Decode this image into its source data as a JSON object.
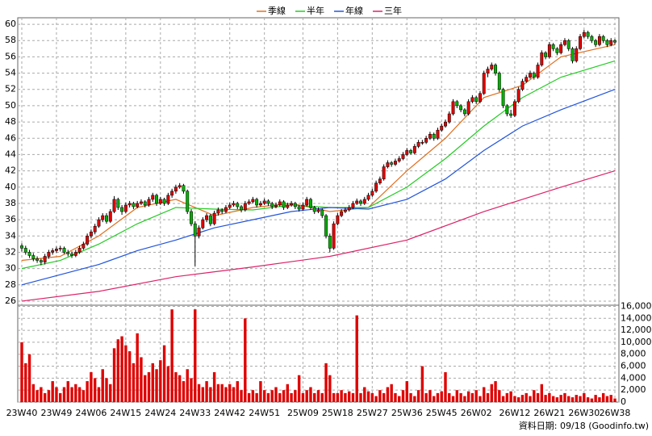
{
  "chart_data": {
    "type": "candlestick",
    "footer": "資料日期: 09/18 (Goodinfo.tw)",
    "up_color": "#e00000",
    "down_color": "#00b000",
    "volume_color": "#e00000",
    "grid": true,
    "ylim": [
      25.5,
      60.8
    ],
    "yticks": [
      26,
      28,
      30,
      32,
      34,
      36,
      38,
      40,
      42,
      44,
      46,
      48,
      50,
      52,
      54,
      56,
      58,
      60
    ],
    "volume_ylim": [
      0,
      16200
    ],
    "volume_yticks": [
      0,
      {
        "value": 2000,
        "label": "2,000"
      },
      {
        "value": 4000,
        "label": "4,000"
      },
      {
        "value": 6000,
        "label": "6,000"
      },
      {
        "value": 8000,
        "label": "8,000"
      },
      {
        "value": 10000,
        "label": "10,000"
      },
      {
        "value": 12000,
        "label": "12,000"
      },
      {
        "value": 14000,
        "label": "14,000"
      },
      {
        "value": 16000,
        "label": "16,000"
      }
    ],
    "categories": [
      "23W40",
      null,
      null,
      null,
      null,
      null,
      null,
      null,
      null,
      "23W49",
      null,
      null,
      null,
      null,
      null,
      null,
      null,
      null,
      "24W06",
      null,
      null,
      null,
      null,
      null,
      null,
      null,
      null,
      "24W15",
      null,
      null,
      null,
      null,
      null,
      null,
      null,
      null,
      "24W24",
      null,
      null,
      null,
      null,
      null,
      null,
      null,
      null,
      "24W33",
      null,
      null,
      null,
      null,
      null,
      null,
      null,
      null,
      "24W42",
      null,
      null,
      null,
      null,
      null,
      null,
      null,
      null,
      "24W51",
      null,
      null,
      null,
      null,
      null,
      null,
      null,
      null,
      null,
      "25W09",
      null,
      null,
      null,
      null,
      null,
      null,
      null,
      null,
      "25W18",
      null,
      null,
      null,
      null,
      null,
      null,
      null,
      null,
      "25W27",
      null,
      null,
      null,
      null,
      null,
      null,
      null,
      null,
      "25W36",
      null,
      null,
      null,
      null,
      null,
      null,
      null,
      null,
      "25W45",
      null,
      null,
      null,
      null,
      null,
      null,
      null,
      null,
      "26W02",
      null,
      null,
      null,
      null,
      null,
      null,
      null,
      null,
      null,
      "26W12",
      null,
      null,
      null,
      null,
      null,
      null,
      null,
      null,
      "26W21",
      null,
      null,
      null,
      null,
      null,
      null,
      null,
      null,
      "26W30",
      null,
      null,
      null,
      null,
      null,
      null,
      null,
      "26W38"
    ],
    "ohlc": [
      [
        32.8,
        33.1,
        32.1,
        32.5
      ],
      [
        32.5,
        32.8,
        31.7,
        32
      ],
      [
        32,
        32.3,
        31.3,
        31.6
      ],
      [
        31.6,
        31.9,
        30.9,
        31.2
      ],
      [
        31.2,
        31.5,
        30.7,
        31
      ],
      [
        31,
        31.2,
        30.4,
        30.8
      ],
      [
        30.8,
        31.8,
        30.5,
        31.5
      ],
      [
        31.5,
        32.3,
        31.2,
        32
      ],
      [
        32,
        32.5,
        31.7,
        32.2
      ],
      [
        32.2,
        32.7,
        31.9,
        32.4
      ],
      [
        32.4,
        32.8,
        32.1,
        32.5
      ],
      [
        32.5,
        32.7,
        31.8,
        32
      ],
      [
        32,
        32.3,
        31.5,
        31.8
      ],
      [
        31.8,
        32.1,
        31.3,
        31.6
      ],
      [
        31.6,
        32.3,
        31.4,
        32
      ],
      [
        32,
        32.8,
        31.8,
        32.5
      ],
      [
        32.5,
        33.3,
        32.3,
        33
      ],
      [
        33,
        34.3,
        32.8,
        34
      ],
      [
        34,
        34.8,
        33.7,
        34.5
      ],
      [
        34.5,
        35.5,
        34.2,
        35.2
      ],
      [
        35.2,
        36.3,
        35,
        36
      ],
      [
        36,
        36.8,
        35.7,
        36.5
      ],
      [
        36.5,
        36.8,
        35.5,
        35.8
      ],
      [
        35.8,
        37.3,
        35.6,
        37
      ],
      [
        37,
        38.9,
        36.8,
        38.5
      ],
      [
        38.5,
        38.7,
        37.2,
        37.5
      ],
      [
        37.5,
        37.8,
        36.6,
        37
      ],
      [
        37,
        38.1,
        36.8,
        37.8
      ],
      [
        37.8,
        38.3,
        37.5,
        38
      ],
      [
        38,
        38.2,
        37.3,
        37.6
      ],
      [
        37.6,
        38.3,
        37.4,
        38
      ],
      [
        38,
        38.5,
        37.8,
        38.2
      ],
      [
        38.2,
        38.4,
        37.5,
        37.8
      ],
      [
        37.8,
        38.8,
        37.6,
        38.5
      ],
      [
        38.5,
        39.3,
        38.2,
        39
      ],
      [
        39,
        39.2,
        37.7,
        38
      ],
      [
        38,
        38.8,
        37.8,
        38.5
      ],
      [
        38.5,
        38.7,
        37.7,
        38
      ],
      [
        38,
        39.3,
        37.8,
        39
      ],
      [
        39,
        39.8,
        38.7,
        39.5
      ],
      [
        39.5,
        40.3,
        39.2,
        40
      ],
      [
        40,
        40.5,
        39.8,
        40.2
      ],
      [
        40.2,
        40.4,
        39.2,
        39.5
      ],
      [
        39.5,
        39.7,
        36.7,
        37
      ],
      [
        37,
        37.3,
        35.2,
        35.5
      ],
      [
        35.5,
        35.8,
        30.3,
        34
      ],
      [
        34,
        35.3,
        33.7,
        35
      ],
      [
        35,
        36.3,
        34.8,
        36
      ],
      [
        36,
        36.8,
        35.7,
        36.5
      ],
      [
        36.5,
        36.7,
        35.2,
        35.5
      ],
      [
        35.5,
        37.1,
        35.3,
        36.8
      ],
      [
        36.8,
        37.5,
        36.5,
        37.2
      ],
      [
        37.2,
        37.4,
        36.7,
        37
      ],
      [
        37,
        37.8,
        36.8,
        37.5
      ],
      [
        37.5,
        38.1,
        37.3,
        37.8
      ],
      [
        37.8,
        38.3,
        37.6,
        38
      ],
      [
        38,
        38.2,
        37.3,
        37.6
      ],
      [
        37.6,
        37.8,
        36.9,
        37.2
      ],
      [
        37.2,
        38.3,
        37,
        38
      ],
      [
        38,
        38.5,
        37.8,
        38.2
      ],
      [
        38.2,
        38.8,
        38,
        38.5
      ],
      [
        38.5,
        38.7,
        37.5,
        37.8
      ],
      [
        37.8,
        38.3,
        37.6,
        38
      ],
      [
        38,
        38.6,
        37.8,
        38.3
      ],
      [
        38.3,
        38.5,
        37.7,
        38
      ],
      [
        38,
        38.2,
        37.3,
        37.6
      ],
      [
        37.6,
        38.1,
        37.4,
        37.8
      ],
      [
        37.8,
        38.5,
        37.6,
        38.2
      ],
      [
        38.2,
        38.4,
        37.2,
        37.5
      ],
      [
        37.5,
        38.1,
        37.3,
        37.8
      ],
      [
        37.8,
        38.3,
        37.6,
        38
      ],
      [
        38,
        38.2,
        37.3,
        37.6
      ],
      [
        37.6,
        37.8,
        37,
        37.3
      ],
      [
        37.3,
        38.1,
        37.1,
        37.8
      ],
      [
        37.8,
        38.8,
        37.6,
        38.5
      ],
      [
        38.5,
        38.7,
        37.2,
        37.5
      ],
      [
        37.5,
        37.7,
        36.7,
        37
      ],
      [
        37,
        37.5,
        36.8,
        37.2
      ],
      [
        37.2,
        37.4,
        36.2,
        36.5
      ],
      [
        36.5,
        36.7,
        33.7,
        34
      ],
      [
        34,
        34.3,
        32,
        32.5
      ],
      [
        32.5,
        35.8,
        32.3,
        35.5
      ],
      [
        35.5,
        36.8,
        35.3,
        36.5
      ],
      [
        36.5,
        37.3,
        36.3,
        37
      ],
      [
        37,
        37.5,
        36.8,
        37.2
      ],
      [
        37.2,
        37.8,
        37,
        37.5
      ],
      [
        37.5,
        38.3,
        37.3,
        38
      ],
      [
        38,
        38.6,
        37.8,
        38.3
      ],
      [
        38.3,
        38.5,
        37.7,
        38
      ],
      [
        38,
        38.8,
        37.8,
        38.5
      ],
      [
        38.5,
        39.3,
        38.3,
        39
      ],
      [
        39,
        39.8,
        38.8,
        39.5
      ],
      [
        39.5,
        40.8,
        39.3,
        40.5
      ],
      [
        40.5,
        41.3,
        40.3,
        41
      ],
      [
        41,
        42.8,
        40.8,
        42.5
      ],
      [
        42.5,
        43.3,
        42.3,
        43
      ],
      [
        43,
        43.2,
        42.5,
        42.8
      ],
      [
        42.8,
        43.5,
        42.6,
        43.2
      ],
      [
        43.2,
        43.8,
        43,
        43.5
      ],
      [
        43.5,
        44.3,
        43.3,
        44
      ],
      [
        44,
        44.8,
        43.8,
        44.5
      ],
      [
        44.5,
        44.7,
        44,
        44.2
      ],
      [
        44.2,
        45.3,
        44,
        45
      ],
      [
        45,
        45.8,
        44.8,
        45.5
      ],
      [
        45.5,
        45.8,
        45.2,
        45.5
      ],
      [
        45.5,
        46.3,
        45.3,
        46
      ],
      [
        46,
        46.8,
        45.8,
        46.5
      ],
      [
        46.5,
        46.7,
        45.7,
        46
      ],
      [
        46,
        47.3,
        45.8,
        47
      ],
      [
        47,
        47.8,
        46.8,
        47.5
      ],
      [
        47.5,
        48.3,
        47.3,
        48
      ],
      [
        48,
        49.3,
        47.8,
        49
      ],
      [
        49,
        50.8,
        48.8,
        50.5
      ],
      [
        50.5,
        50.7,
        49.7,
        50
      ],
      [
        50,
        50.2,
        49.2,
        49.5
      ],
      [
        49.5,
        49.7,
        48.7,
        49
      ],
      [
        49,
        50.8,
        48.8,
        50.5
      ],
      [
        50.5,
        51.3,
        50.3,
        51
      ],
      [
        51,
        51.2,
        50.2,
        50.5
      ],
      [
        50.5,
        51.8,
        50.3,
        51.5
      ],
      [
        51.5,
        54.3,
        51.3,
        54
      ],
      [
        54,
        54.8,
        53.5,
        54.5
      ],
      [
        54.5,
        55.3,
        54.3,
        55
      ],
      [
        55,
        55.2,
        53.7,
        54
      ],
      [
        54,
        54.2,
        51.7,
        52
      ],
      [
        52,
        52.2,
        49.7,
        50
      ],
      [
        50,
        50.2,
        48.7,
        49
      ],
      [
        49,
        49.5,
        48.5,
        48.8
      ],
      [
        48.8,
        50.8,
        48.6,
        50.5
      ],
      [
        50.5,
        52.3,
        50.3,
        52
      ],
      [
        52,
        53.3,
        51.8,
        53
      ],
      [
        53,
        53.8,
        52.8,
        53.5
      ],
      [
        53.5,
        54.3,
        53.3,
        54
      ],
      [
        54,
        54.2,
        53.2,
        53.5
      ],
      [
        53.5,
        55.3,
        53.3,
        55
      ],
      [
        55,
        56.8,
        54.8,
        56.5
      ],
      [
        56.5,
        56.7,
        55.7,
        56
      ],
      [
        56,
        57.8,
        55.8,
        57.5
      ],
      [
        57.5,
        57.7,
        56.7,
        57
      ],
      [
        57,
        57.2,
        56.2,
        56.5
      ],
      [
        56.5,
        57.8,
        56.3,
        57.5
      ],
      [
        57.5,
        58.3,
        57.3,
        58
      ],
      [
        58,
        58.2,
        56.7,
        57
      ],
      [
        57,
        57.2,
        55.2,
        55.5
      ],
      [
        55.5,
        57.3,
        55.3,
        57
      ],
      [
        57,
        58.8,
        56.8,
        58.5
      ],
      [
        58.5,
        59.3,
        58.3,
        59
      ],
      [
        59,
        59.2,
        58.2,
        58.5
      ],
      [
        58.5,
        58.7,
        57.7,
        58
      ],
      [
        58,
        58.2,
        57.2,
        57.5
      ],
      [
        57.5,
        58.8,
        57.3,
        58.5
      ],
      [
        58.5,
        58.7,
        57.7,
        58
      ],
      [
        58,
        58.2,
        57.2,
        57.5
      ],
      [
        57.5,
        58.3,
        57.3,
        58
      ],
      [
        58,
        58.2,
        57.5,
        57.8
      ]
    ],
    "volume": [
      10000,
      6500,
      8000,
      3000,
      2000,
      2500,
      1500,
      2000,
      3500,
      2500,
      1500,
      2500,
      3500,
      2500,
      3000,
      2500,
      2000,
      3500,
      5000,
      4000,
      2500,
      5500,
      4000,
      3000,
      9000,
      10500,
      11000,
      9500,
      8500,
      6500,
      11500,
      7500,
      4500,
      5000,
      6500,
      5500,
      7000,
      9500,
      6000,
      15500,
      5000,
      4500,
      3500,
      5500,
      4000,
      15500,
      3000,
      2500,
      3500,
      2500,
      5000,
      3000,
      3000,
      2500,
      3000,
      2500,
      3500,
      2000,
      14000,
      1500,
      2000,
      1500,
      3500,
      2000,
      1500,
      2000,
      2500,
      1500,
      2000,
      3000,
      1500,
      2000,
      4500,
      1500,
      2000,
      2500,
      1500,
      2000,
      1500,
      6500,
      4500,
      1500,
      1500,
      2000,
      1500,
      1800,
      1500,
      14500,
      1500,
      2500,
      1800,
      1500,
      1000,
      2000,
      1500,
      2500,
      3000,
      1500,
      1000,
      2000,
      3500,
      1500,
      1000,
      2000,
      6000,
      1500,
      2000,
      1000,
      1500,
      1800,
      5000,
      1500,
      1000,
      2000,
      1500,
      1000,
      1800,
      1500,
      2000,
      1000,
      2500,
      1500,
      3000,
      3500,
      2000,
      1000,
      1500,
      1800,
      1000,
      800,
      1200,
      1500,
      1000,
      2000,
      1500,
      3000,
      1200,
      1500,
      1000,
      800,
      1200,
      1500,
      1000,
      800,
      1200,
      1000,
      1500,
      800,
      600,
      1200,
      800,
      1500,
      1000,
      1200,
      600
    ],
    "series": [
      {
        "name": "季線",
        "color": "#e07020",
        "x": [
          0,
          10,
          20,
          30,
          40,
          50,
          60,
          70,
          80,
          90,
          100,
          110,
          120,
          130,
          140,
          154
        ],
        "values": [
          31,
          31.5,
          34,
          37.5,
          38.5,
          36.5,
          37.5,
          38,
          37,
          37.5,
          42,
          46,
          51,
          52.5,
          56,
          57.5
        ]
      },
      {
        "name": "半年",
        "color": "#22cc22",
        "x": [
          0,
          10,
          20,
          30,
          40,
          50,
          60,
          70,
          80,
          90,
          100,
          110,
          120,
          130,
          140,
          154
        ],
        "values": [
          30,
          31,
          33,
          35.5,
          37.5,
          37.3,
          37.2,
          37.8,
          37.5,
          37.5,
          40,
          43.5,
          47.5,
          51,
          53.5,
          55.5
        ]
      },
      {
        "name": "年線",
        "color": "#2255dd",
        "x": [
          0,
          20,
          30,
          40,
          50,
          60,
          70,
          80,
          90,
          100,
          110,
          120,
          130,
          140,
          154
        ],
        "values": [
          28,
          30.5,
          32.2,
          33.5,
          35,
          36,
          37,
          37.5,
          37.3,
          38.5,
          41,
          44.5,
          47.5,
          49.5,
          52
        ]
      },
      {
        "name": "三年",
        "color": "#dd2266",
        "x": [
          0,
          20,
          40,
          60,
          80,
          100,
          120,
          140,
          154
        ],
        "values": [
          26,
          27.2,
          29,
          30.2,
          31.5,
          33.5,
          37,
          40,
          42
        ]
      }
    ]
  }
}
